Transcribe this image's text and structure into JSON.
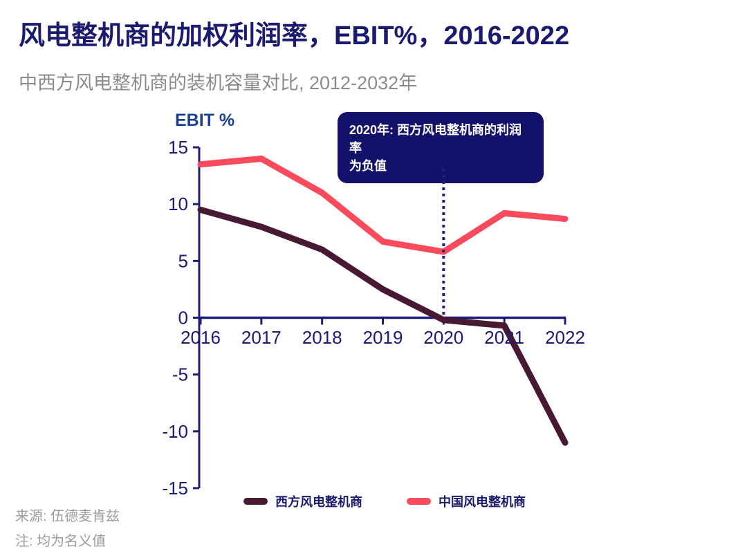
{
  "page": {
    "title": "风电整机商的加权利润率，EBIT%，2016-2022",
    "subtitle": "中西方风电整机商的装机容量对比, 2012-2032年"
  },
  "chart_data": {
    "type": "line",
    "title": "",
    "xlabel": "",
    "ylabel": "EBIT %",
    "categories": [
      "2016",
      "2017",
      "2018",
      "2019",
      "2020",
      "2021",
      "2022"
    ],
    "yticks": [
      15,
      10,
      5,
      0,
      -5,
      -10,
      -15
    ],
    "ylim": [
      -15,
      15
    ],
    "grid": false,
    "legend_position": "bottom",
    "series": [
      {
        "name": "西方风电整机商",
        "color": "#471933",
        "values": [
          9.5,
          8.0,
          6.0,
          2.5,
          -0.2,
          -0.7,
          -11.0
        ]
      },
      {
        "name": "中国风电整机商",
        "color": "#fa4b5c",
        "values": [
          13.5,
          14.0,
          11.0,
          6.7,
          5.8,
          9.2,
          8.7
        ]
      }
    ],
    "annotation": {
      "line1": "2020年: 西方风电整机商的利润率",
      "line2": "为负值",
      "x_category": "2020",
      "bg_color": "#12126b",
      "text_color": "#ffffff"
    },
    "axis_color": "#1e1e78",
    "tick_label_color": "#1a1a78"
  },
  "footer": {
    "source": "来源: 伍德麦肯兹",
    "note": "注: 均为名义值"
  },
  "colors": {
    "title": "#1a1a6e",
    "subtitle": "#8b8b8b",
    "ylabel": "#1c3f94",
    "footer": "#9b9b9b"
  }
}
